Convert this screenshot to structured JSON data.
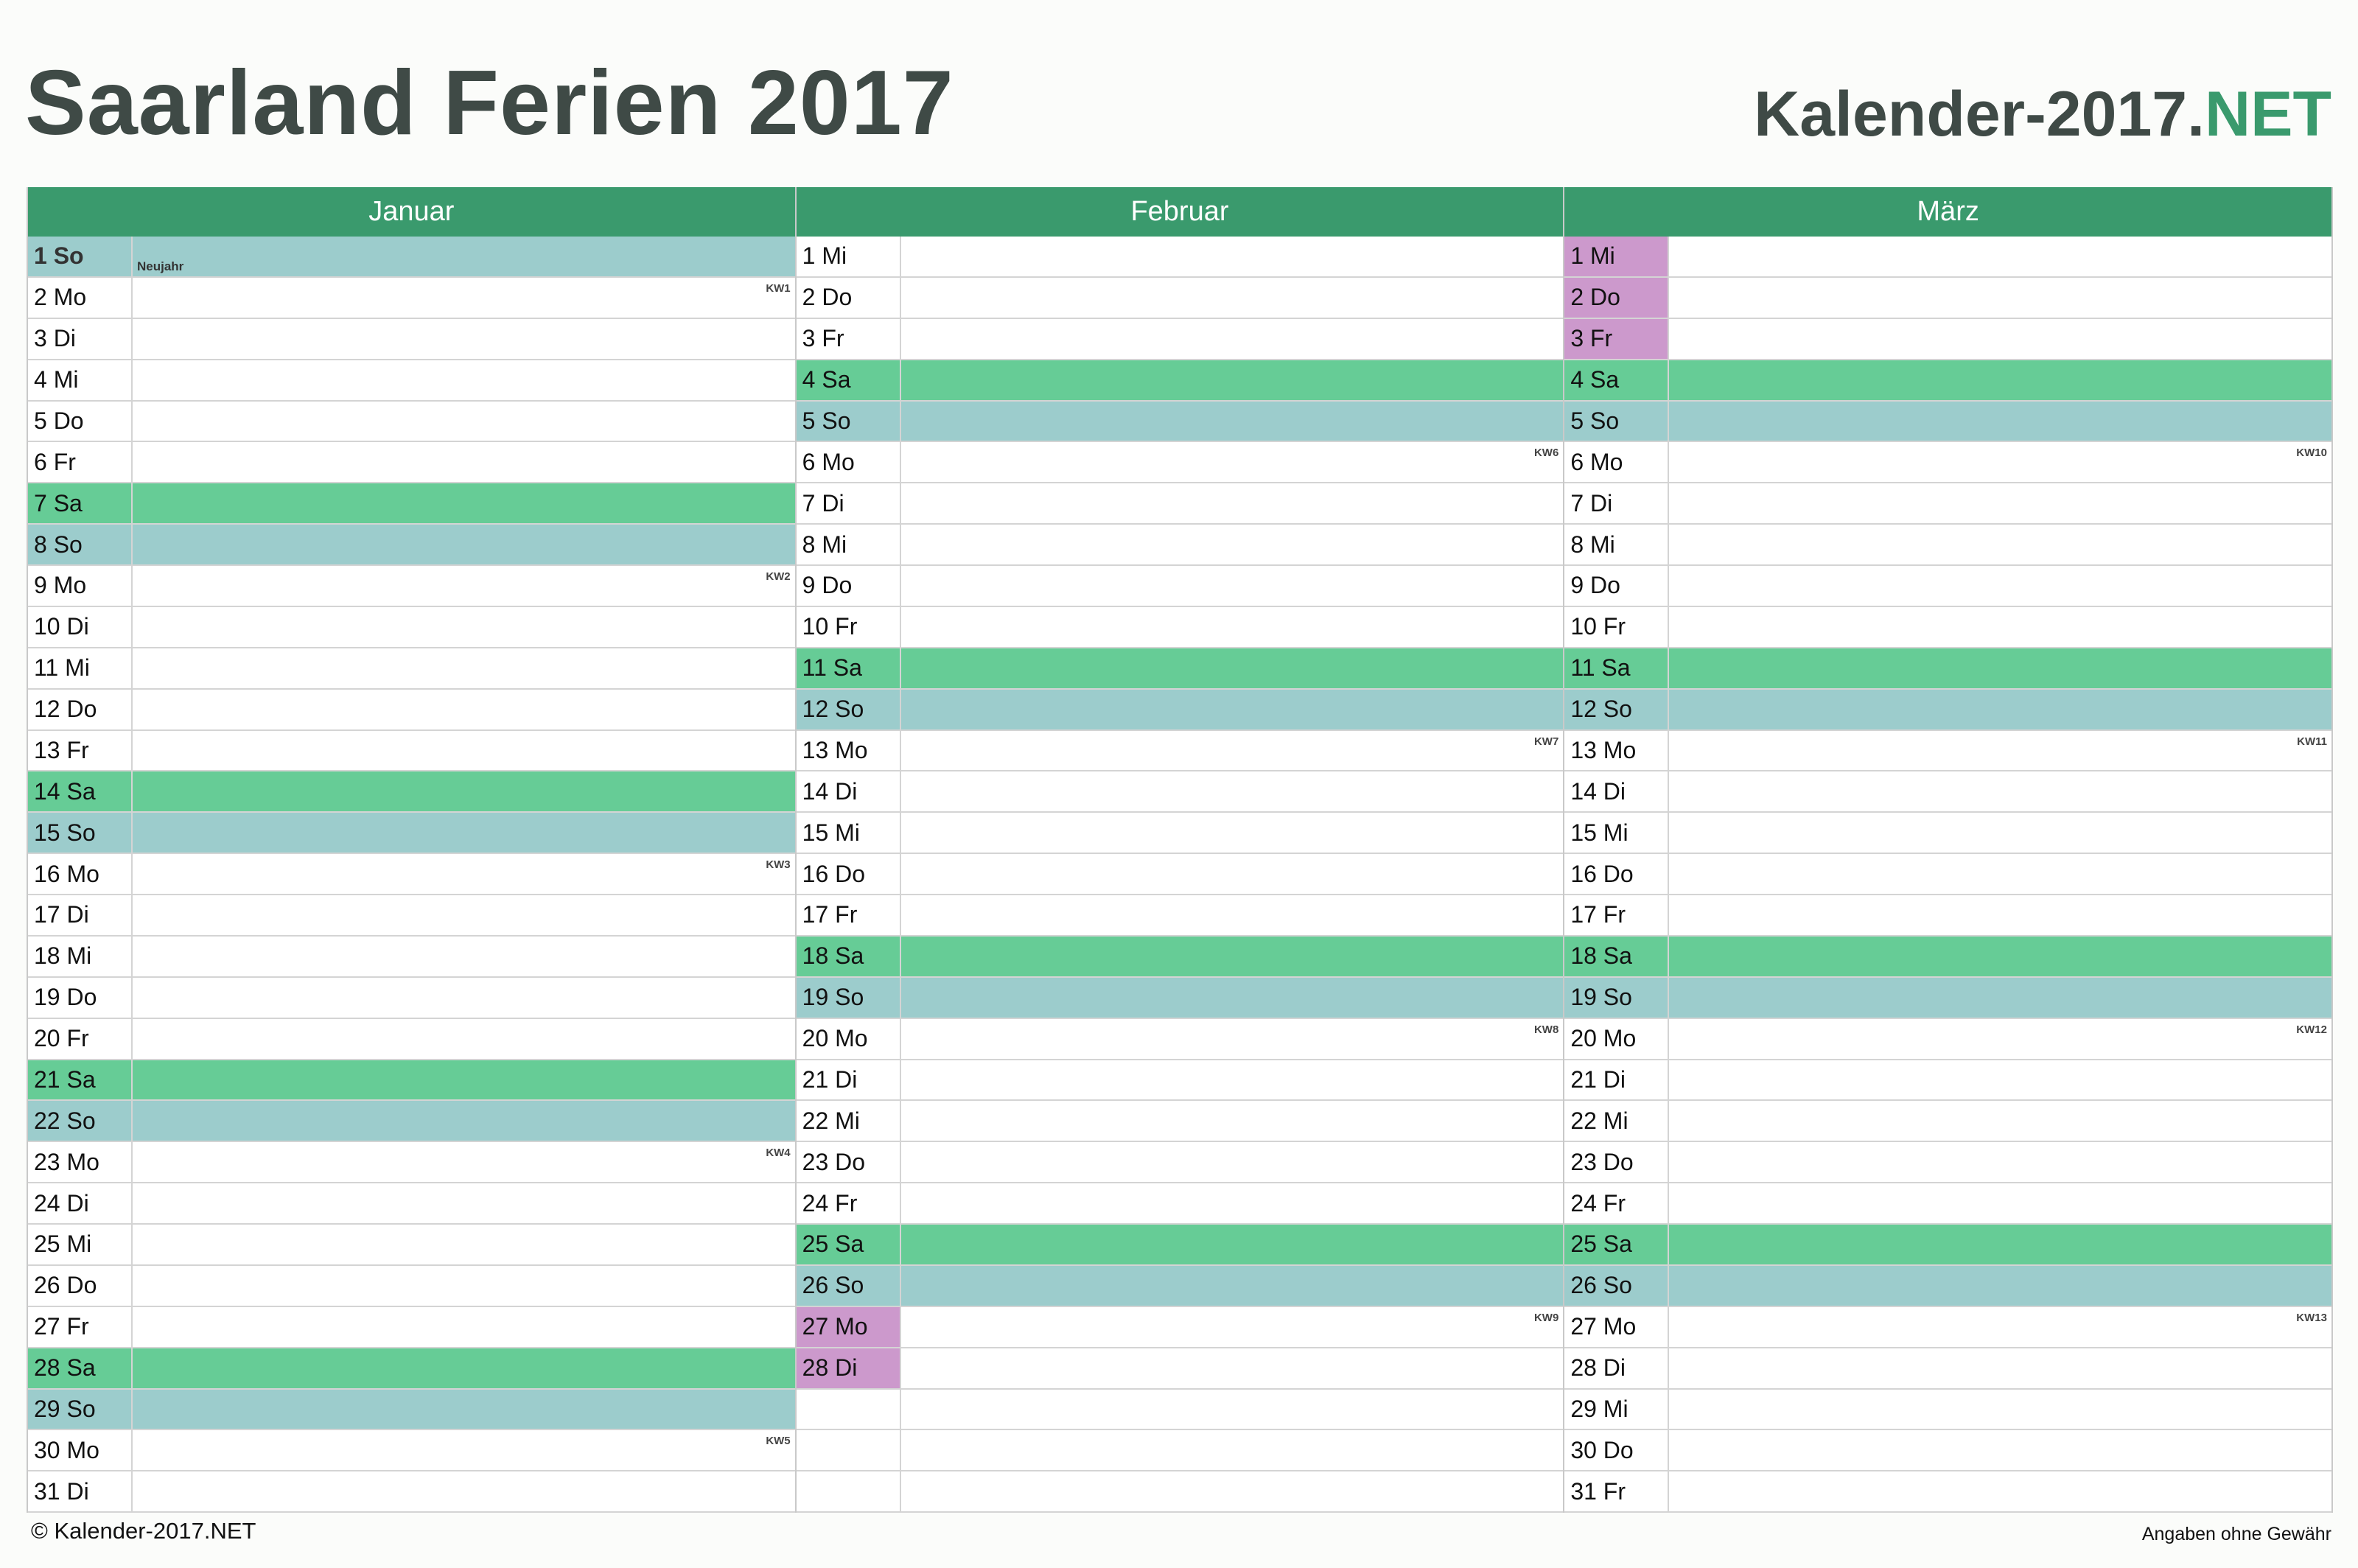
{
  "header": {
    "title": "Saarland Ferien 2017",
    "brand_main": "Kalender-2017.",
    "brand_accent": "NET"
  },
  "colors": {
    "header_green": "#3a9a6d",
    "saturday": "#66cc96",
    "sunday_holiday": "#9ccccc",
    "school_vacation": "#cc99cc"
  },
  "months": [
    {
      "name": "Januar",
      "days": [
        {
          "label": "1 So",
          "type": "so",
          "holiday": true,
          "note": "Neujahr"
        },
        {
          "label": "2 Mo",
          "kw": "KW1"
        },
        {
          "label": "3 Di"
        },
        {
          "label": "4 Mi"
        },
        {
          "label": "5 Do"
        },
        {
          "label": "6 Fr"
        },
        {
          "label": "7 Sa",
          "type": "sa"
        },
        {
          "label": "8 So",
          "type": "so"
        },
        {
          "label": "9 Mo",
          "kw": "KW2"
        },
        {
          "label": "10 Di"
        },
        {
          "label": "11 Mi"
        },
        {
          "label": "12 Do"
        },
        {
          "label": "13 Fr"
        },
        {
          "label": "14 Sa",
          "type": "sa"
        },
        {
          "label": "15 So",
          "type": "so"
        },
        {
          "label": "16 Mo",
          "kw": "KW3"
        },
        {
          "label": "17 Di"
        },
        {
          "label": "18 Mi"
        },
        {
          "label": "19 Do"
        },
        {
          "label": "20 Fr"
        },
        {
          "label": "21 Sa",
          "type": "sa"
        },
        {
          "label": "22 So",
          "type": "so"
        },
        {
          "label": "23 Mo",
          "kw": "KW4"
        },
        {
          "label": "24 Di"
        },
        {
          "label": "25 Mi"
        },
        {
          "label": "26 Do"
        },
        {
          "label": "27 Fr"
        },
        {
          "label": "28 Sa",
          "type": "sa"
        },
        {
          "label": "29 So",
          "type": "so"
        },
        {
          "label": "30 Mo",
          "kw": "KW5"
        },
        {
          "label": "31 Di"
        }
      ]
    },
    {
      "name": "Februar",
      "days": [
        {
          "label": "1 Mi"
        },
        {
          "label": "2 Do"
        },
        {
          "label": "3 Fr"
        },
        {
          "label": "4 Sa",
          "type": "sa"
        },
        {
          "label": "5 So",
          "type": "so"
        },
        {
          "label": "6 Mo",
          "kw": "KW6"
        },
        {
          "label": "7 Di"
        },
        {
          "label": "8 Mi"
        },
        {
          "label": "9 Do"
        },
        {
          "label": "10 Fr"
        },
        {
          "label": "11 Sa",
          "type": "sa"
        },
        {
          "label": "12 So",
          "type": "so"
        },
        {
          "label": "13 Mo",
          "kw": "KW7"
        },
        {
          "label": "14 Di"
        },
        {
          "label": "15 Mi"
        },
        {
          "label": "16 Do"
        },
        {
          "label": "17 Fr"
        },
        {
          "label": "18 Sa",
          "type": "sa"
        },
        {
          "label": "19 So",
          "type": "so"
        },
        {
          "label": "20 Mo",
          "kw": "KW8"
        },
        {
          "label": "21 Di"
        },
        {
          "label": "22 Mi"
        },
        {
          "label": "23 Do"
        },
        {
          "label": "24 Fr"
        },
        {
          "label": "25 Sa",
          "type": "sa"
        },
        {
          "label": "26 So",
          "type": "so"
        },
        {
          "label": "27 Mo",
          "kw": "KW9",
          "ferien": true
        },
        {
          "label": "28 Di",
          "ferien": true
        },
        {
          "label": ""
        },
        {
          "label": ""
        },
        {
          "label": ""
        }
      ]
    },
    {
      "name": "März",
      "days": [
        {
          "label": "1 Mi",
          "ferien": true
        },
        {
          "label": "2 Do",
          "ferien": true
        },
        {
          "label": "3 Fr",
          "ferien": true
        },
        {
          "label": "4 Sa",
          "type": "sa"
        },
        {
          "label": "5 So",
          "type": "so"
        },
        {
          "label": "6 Mo",
          "kw": "KW10"
        },
        {
          "label": "7 Di"
        },
        {
          "label": "8 Mi"
        },
        {
          "label": "9 Do"
        },
        {
          "label": "10 Fr"
        },
        {
          "label": "11 Sa",
          "type": "sa"
        },
        {
          "label": "12 So",
          "type": "so"
        },
        {
          "label": "13 Mo",
          "kw": "KW11"
        },
        {
          "label": "14 Di"
        },
        {
          "label": "15 Mi"
        },
        {
          "label": "16 Do"
        },
        {
          "label": "17 Fr"
        },
        {
          "label": "18 Sa",
          "type": "sa"
        },
        {
          "label": "19 So",
          "type": "so"
        },
        {
          "label": "20 Mo",
          "kw": "KW12"
        },
        {
          "label": "21 Di"
        },
        {
          "label": "22 Mi"
        },
        {
          "label": "23 Do"
        },
        {
          "label": "24 Fr"
        },
        {
          "label": "25 Sa",
          "type": "sa"
        },
        {
          "label": "26 So",
          "type": "so"
        },
        {
          "label": "27 Mo",
          "kw": "KW13"
        },
        {
          "label": "28 Di"
        },
        {
          "label": "29 Mi"
        },
        {
          "label": "30 Do"
        },
        {
          "label": "31 Fr"
        }
      ]
    }
  ],
  "footer": {
    "copyright": "© Kalender-2017.NET",
    "disclaimer": "Angaben ohne Gewähr"
  }
}
